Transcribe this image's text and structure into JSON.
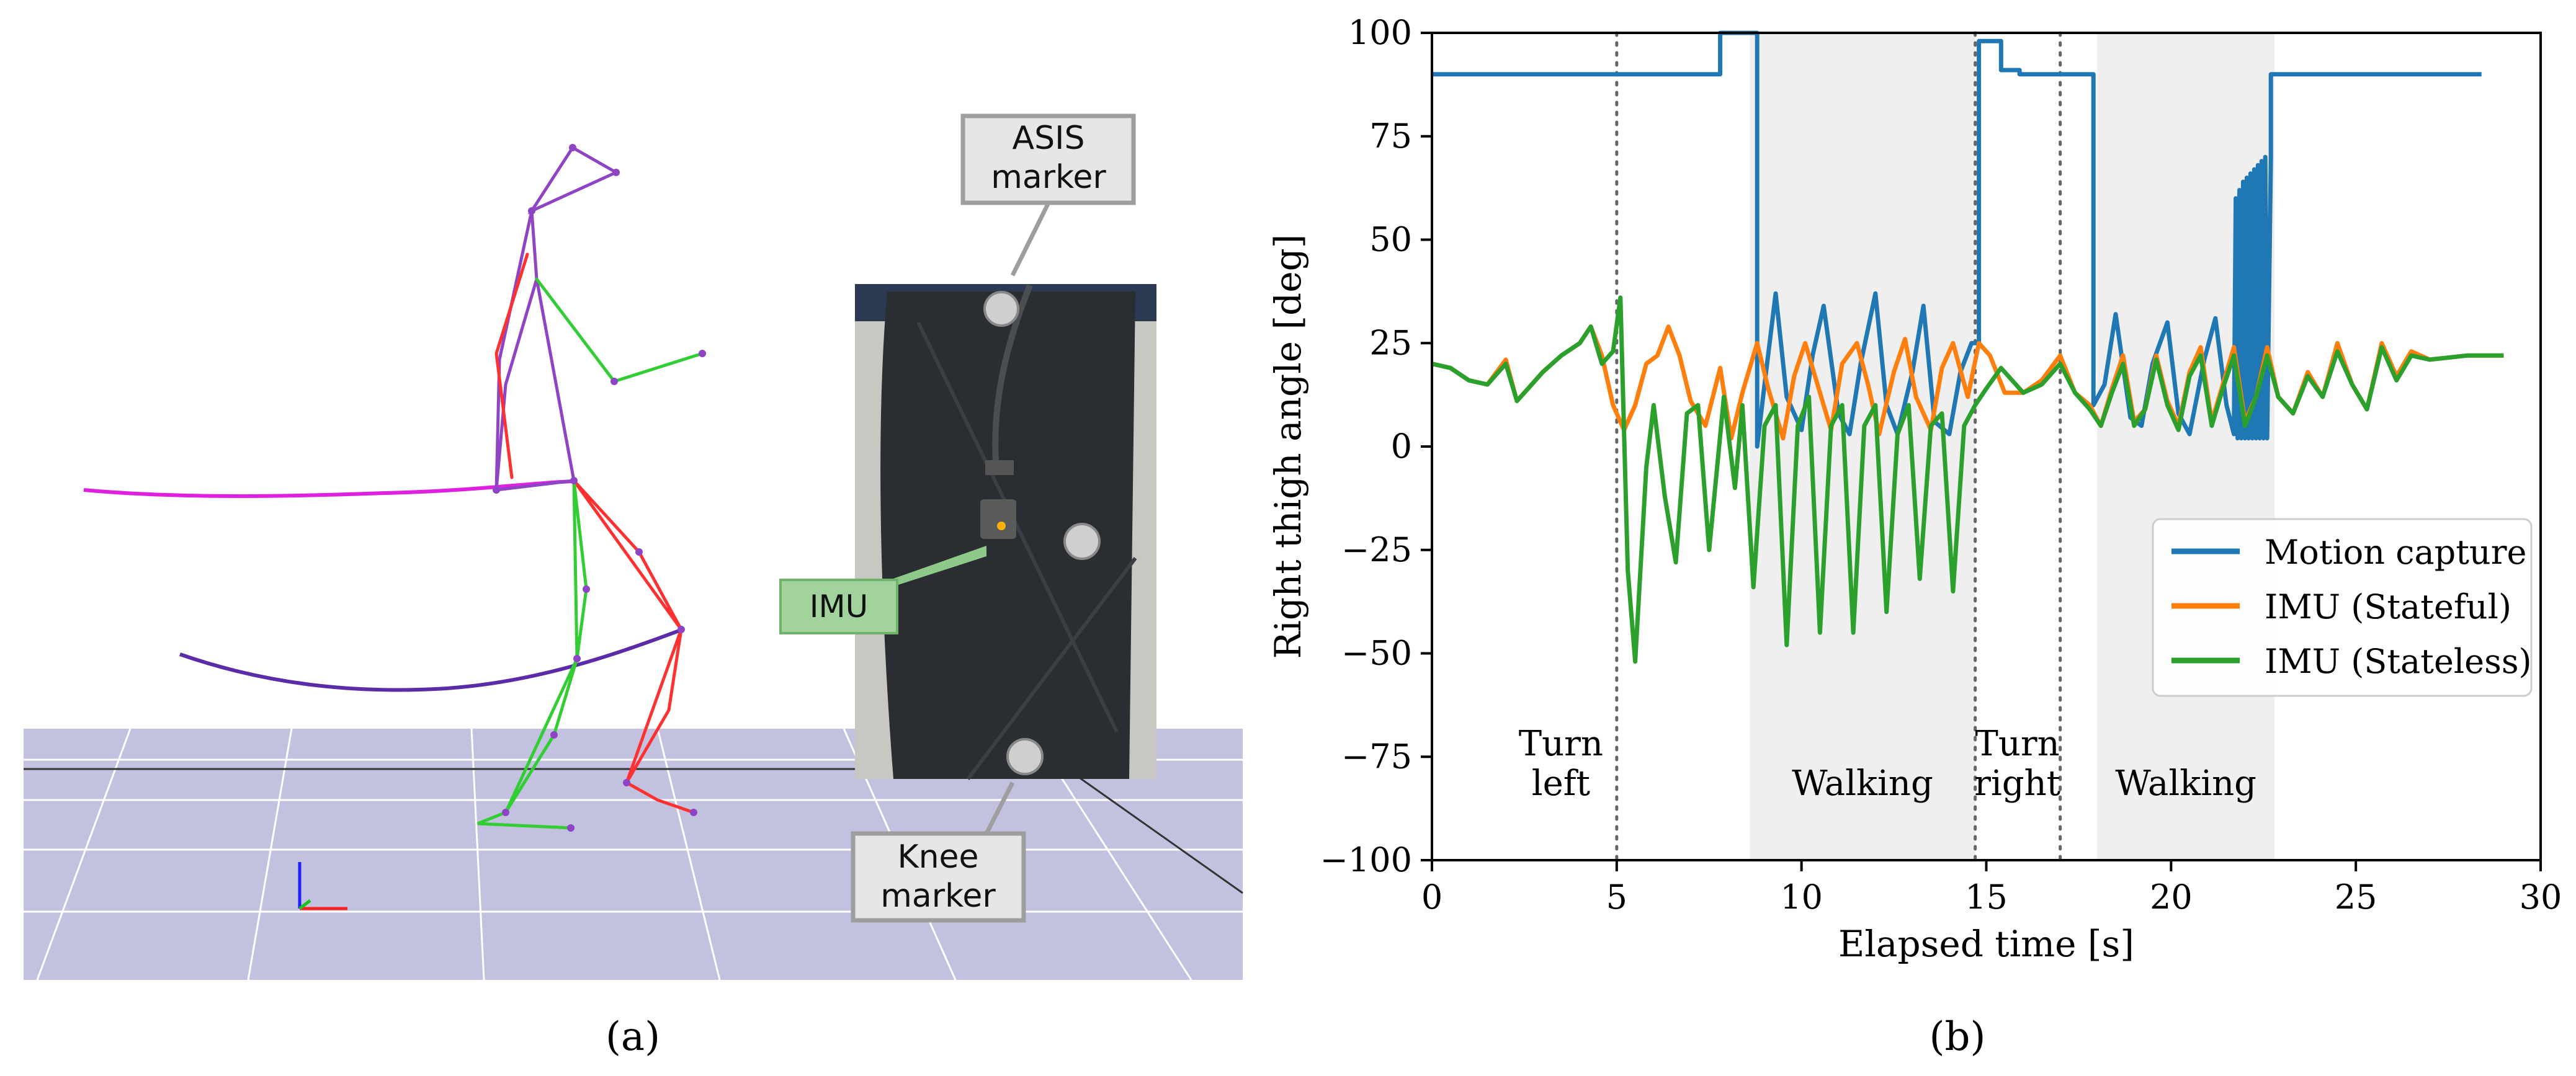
{
  "panel_a": {
    "caption": "(a)",
    "callouts": {
      "asis": [
        "ASIS",
        "marker"
      ],
      "imu": "IMU",
      "knee": [
        "Knee",
        "marker"
      ]
    },
    "colors": {
      "floor": "#c2c2e0",
      "floor_grid": "#ffffff",
      "skeleton_left": "#32cd32",
      "skeleton_right": "#ff3030",
      "skeleton_torso": "#8e44c4",
      "trajectory_upper": "#e020e0",
      "trajectory_lower": "#5b2ba8",
      "callout_grey_fill": "#e6e6e6",
      "callout_grey_border": "#9e9e9e",
      "callout_green_fill": "#a3d39c",
      "callout_green_border": "#6fb26b"
    }
  },
  "panel_b": {
    "caption": "(b)"
  },
  "chart_data": {
    "type": "line",
    "xlabel": "Elapsed time [s]",
    "ylabel": "Right thigh angle [deg]",
    "xlim": [
      0,
      30
    ],
    "ylim": [
      -100,
      100
    ],
    "xticks": [
      0,
      5,
      10,
      15,
      20,
      25,
      30
    ],
    "yticks": [
      100,
      75,
      50,
      25,
      0,
      -25,
      -50,
      -75,
      -100
    ],
    "grid": false,
    "legend_position": "lower-right",
    "shaded_regions": [
      {
        "from": 8.6,
        "to": 14.7,
        "label": [
          "Walking"
        ]
      },
      {
        "from": 18.0,
        "to": 22.8,
        "label": [
          "Walking"
        ]
      }
    ],
    "event_lines": [
      {
        "x": 5.0,
        "label": [
          "Turn",
          "left"
        ]
      },
      {
        "x": 14.7,
        "label": [
          "Turn",
          "right"
        ]
      },
      {
        "x": 17.0,
        "label": []
      }
    ],
    "series": [
      {
        "name": "Motion capture",
        "color": "#1f77b4",
        "x": [
          0,
          7.8,
          7.8,
          8.8,
          8.8,
          9.0,
          9.3,
          9.6,
          10.0,
          10.3,
          10.6,
          11.0,
          11.3,
          11.6,
          12.0,
          12.3,
          12.6,
          13.0,
          13.3,
          13.6,
          14.0,
          14.3,
          14.6,
          14.8,
          14.8,
          15.4,
          15.4,
          15.9,
          15.9,
          17.9,
          17.9,
          18.2,
          18.5,
          18.9,
          19.2,
          19.5,
          19.9,
          20.2,
          20.5,
          20.9,
          21.2,
          21.5,
          21.7,
          21.75,
          21.8,
          21.85,
          21.9,
          21.95,
          22.0,
          22.05,
          22.1,
          22.15,
          22.2,
          22.25,
          22.3,
          22.35,
          22.4,
          22.45,
          22.5,
          22.55,
          22.6,
          22.7,
          22.7,
          28.4
        ],
        "y": [
          90,
          90,
          100,
          100,
          0,
          15,
          37,
          12,
          4,
          22,
          34,
          8,
          3,
          20,
          37,
          10,
          3,
          18,
          34,
          6,
          3,
          18,
          25,
          25,
          98,
          98,
          91,
          91,
          90,
          90,
          10,
          15,
          32,
          7,
          5,
          20,
          30,
          8,
          3,
          21,
          31,
          10,
          3,
          60,
          2,
          62,
          2,
          64,
          2,
          65,
          2,
          66,
          2,
          67,
          2,
          68,
          2,
          69,
          2,
          70,
          2,
          70,
          90,
          90
        ]
      },
      {
        "name": "IMU (Stateful)",
        "color": "#ff7f0e",
        "x": [
          0,
          0.5,
          1.0,
          1.5,
          2.0,
          2.3,
          2.7,
          3.0,
          3.5,
          4.0,
          4.3,
          4.6,
          4.9,
          5.2,
          5.5,
          5.8,
          6.1,
          6.4,
          6.7,
          7.0,
          7.4,
          7.8,
          8.1,
          8.4,
          8.8,
          9.1,
          9.5,
          9.8,
          10.1,
          10.5,
          10.8,
          11.1,
          11.5,
          11.8,
          12.1,
          12.5,
          12.8,
          13.1,
          13.5,
          13.8,
          14.1,
          14.5,
          14.8,
          15.1,
          15.5,
          16.0,
          16.5,
          17.0,
          17.4,
          17.8,
          18.1,
          18.4,
          18.7,
          19.0,
          19.3,
          19.6,
          19.9,
          20.2,
          20.5,
          20.8,
          21.1,
          21.4,
          21.7,
          22.0,
          22.3,
          22.6,
          22.9,
          23.3,
          23.7,
          24.1,
          24.5,
          24.9,
          25.3,
          25.7,
          26.1,
          26.5,
          27.0,
          28.0,
          29.0
        ],
        "y": [
          20,
          19,
          16,
          15,
          21,
          11,
          15,
          18,
          22,
          25,
          29,
          22,
          10,
          4,
          10,
          20,
          22,
          29,
          22,
          11,
          5,
          19,
          2,
          13,
          25,
          14,
          2,
          17,
          25,
          13,
          4,
          20,
          25,
          15,
          3,
          18,
          26,
          12,
          4,
          19,
          25,
          12,
          25,
          22,
          13,
          13,
          16,
          22,
          13,
          10,
          5,
          14,
          22,
          6,
          9,
          22,
          11,
          5,
          18,
          24,
          6,
          15,
          24,
          6,
          12,
          24,
          12,
          8,
          18,
          12,
          25,
          15,
          9,
          25,
          17,
          23,
          21,
          22,
          22
        ]
      },
      {
        "name": "IMU (Stateless)",
        "color": "#2ca02c",
        "x": [
          0,
          0.5,
          1.0,
          1.5,
          2.0,
          2.3,
          2.7,
          3.0,
          3.5,
          4.0,
          4.3,
          4.6,
          4.9,
          5.1,
          5.3,
          5.5,
          5.8,
          6.0,
          6.3,
          6.6,
          6.9,
          7.2,
          7.5,
          7.9,
          8.2,
          8.4,
          8.7,
          9.0,
          9.3,
          9.6,
          9.9,
          10.2,
          10.5,
          10.8,
          11.1,
          11.4,
          11.7,
          12.0,
          12.3,
          12.6,
          12.9,
          13.2,
          13.5,
          13.8,
          14.1,
          14.4,
          14.7,
          15.0,
          15.4,
          16.0,
          16.5,
          17.0,
          17.4,
          17.8,
          18.1,
          18.4,
          18.7,
          19.0,
          19.3,
          19.6,
          19.9,
          20.2,
          20.5,
          20.8,
          21.1,
          21.4,
          21.7,
          22.0,
          22.3,
          22.6,
          22.9,
          23.3,
          23.7,
          24.1,
          24.5,
          24.9,
          25.3,
          25.7,
          26.1,
          26.5,
          27.0,
          28.0,
          29.0
        ],
        "y": [
          20,
          19,
          16,
          15,
          20,
          11,
          15,
          18,
          22,
          25,
          29,
          20,
          23,
          36,
          -30,
          -52,
          -5,
          10,
          -12,
          -28,
          8,
          10,
          -25,
          12,
          -10,
          10,
          -34,
          5,
          10,
          -48,
          5,
          12,
          -45,
          5,
          10,
          -45,
          5,
          10,
          -40,
          3,
          10,
          -32,
          5,
          8,
          -35,
          5,
          10,
          14,
          19,
          13,
          15,
          20,
          13,
          9,
          5,
          13,
          20,
          5,
          9,
          21,
          10,
          4,
          17,
          22,
          5,
          14,
          22,
          5,
          12,
          22,
          12,
          8,
          17,
          12,
          23,
          15,
          9,
          24,
          16,
          22,
          21,
          22,
          22
        ]
      }
    ]
  }
}
